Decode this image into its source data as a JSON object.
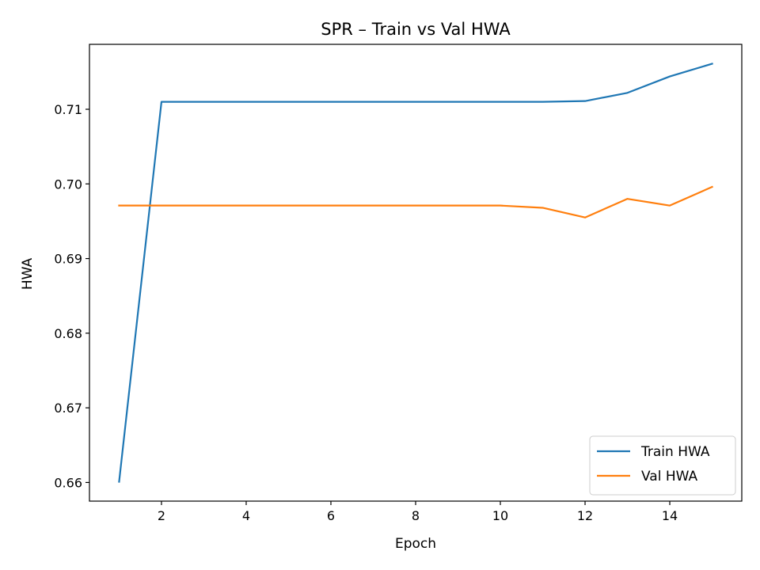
{
  "chart_data": {
    "type": "line",
    "title": "SPR – Train vs Val HWA",
    "xlabel": "Epoch",
    "ylabel": "HWA",
    "xlim": [
      0.3,
      15.7
    ],
    "ylim": [
      0.6575,
      0.7187
    ],
    "xticks": [
      2,
      4,
      6,
      8,
      10,
      12,
      14
    ],
    "yticks": [
      0.66,
      0.67,
      0.68,
      0.69,
      0.7,
      0.71
    ],
    "ytick_labels": [
      "0.66",
      "0.67",
      "0.68",
      "0.69",
      "0.70",
      "0.71"
    ],
    "grid": false,
    "legend_position": "lower-right",
    "x": [
      1,
      2,
      3,
      4,
      5,
      6,
      7,
      8,
      9,
      10,
      11,
      12,
      13,
      14,
      15
    ],
    "series": [
      {
        "name": "Train HWA",
        "color": "#1f77b4",
        "values": [
          0.6601,
          0.711,
          0.711,
          0.711,
          0.711,
          0.711,
          0.711,
          0.711,
          0.711,
          0.711,
          0.711,
          0.7111,
          0.7122,
          0.7144,
          0.7161
        ]
      },
      {
        "name": "Val HWA",
        "color": "#ff7f0e",
        "values": [
          0.6971,
          0.6971,
          0.6971,
          0.6971,
          0.6971,
          0.6971,
          0.6971,
          0.6971,
          0.6971,
          0.6971,
          0.6968,
          0.6955,
          0.698,
          0.6971,
          0.6996
        ]
      }
    ]
  }
}
